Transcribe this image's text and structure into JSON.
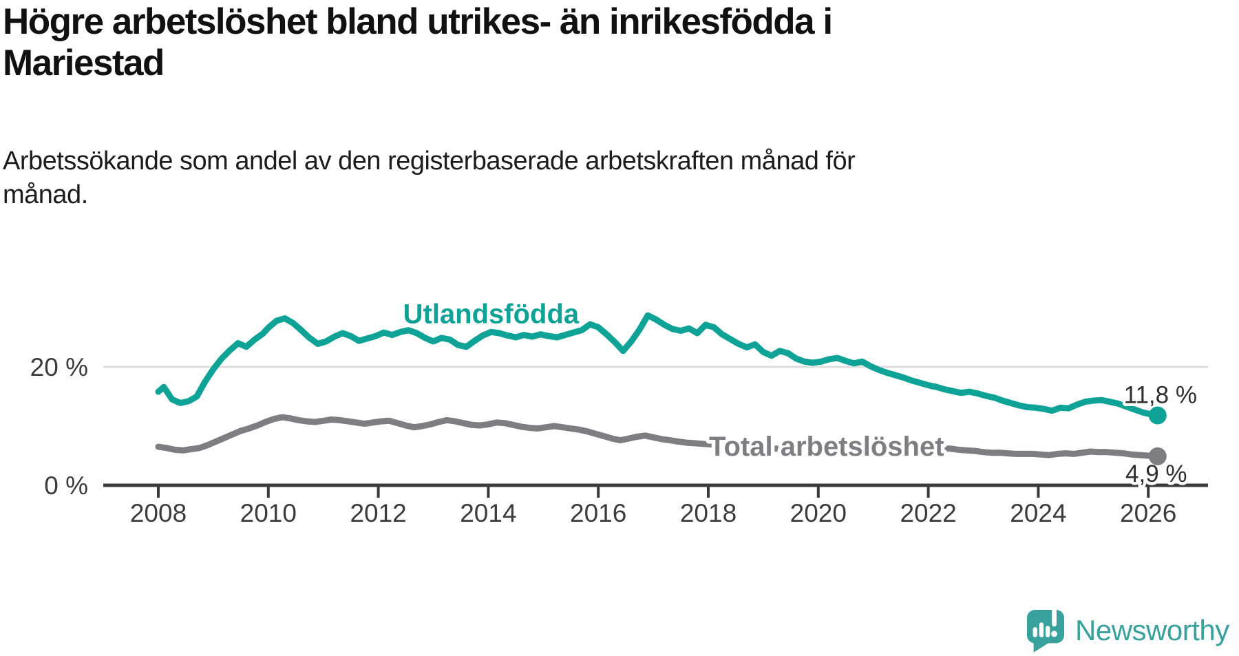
{
  "title": "Högre arbetslöshet bland utrikes- än inrikesfödda i\nMariestad",
  "subtitle": "Arbetssökande som andel av den registerbaserade arbetskraften månad för\nmånad.",
  "branding": {
    "name": "Newsworthy",
    "logo_icon": "speech-bubble-bar-chart-icon"
  },
  "colors": {
    "teal_series": "#0fa296",
    "gray_series": "#7d7d82",
    "axis": "#3b3b3b",
    "gridline": "#dedede",
    "value_label_text": "#2e2e2e",
    "logo_teal": "#38a19b"
  },
  "chart_data": {
    "type": "line",
    "title": "Högre arbetslöshet bland utrikes- än inrikesfödda i Mariestad",
    "subtitle": "Arbetssökande som andel av den registerbaserade arbetskraften månad för månad.",
    "x_axis": {
      "range": [
        2008,
        2026.17
      ],
      "ticks": [
        2008,
        2010,
        2012,
        2014,
        2016,
        2018,
        2020,
        2022,
        2024,
        2026
      ],
      "grid": false
    },
    "y_axis": {
      "range": [
        0,
        33
      ],
      "unit": "%",
      "ticks": [
        {
          "value": 0,
          "label": "0 %"
        },
        {
          "value": 20,
          "label": "20 %"
        }
      ],
      "grid": true
    },
    "legend_position": "inline-labels",
    "series": [
      {
        "name": "Utlandsfödda",
        "color": "#0fa296",
        "end_label": "11,8 %",
        "end_value": 11.8,
        "label_pos": {
          "year": 2014.05,
          "value": 29.0
        },
        "points": [
          [
            2008.0,
            15.8
          ],
          [
            2008.1,
            16.6
          ],
          [
            2008.25,
            14.5
          ],
          [
            2008.4,
            13.9
          ],
          [
            2008.55,
            14.2
          ],
          [
            2008.7,
            15.0
          ],
          [
            2008.85,
            17.5
          ],
          [
            2009.0,
            19.6
          ],
          [
            2009.15,
            21.4
          ],
          [
            2009.3,
            22.8
          ],
          [
            2009.45,
            24.0
          ],
          [
            2009.6,
            23.4
          ],
          [
            2009.75,
            24.6
          ],
          [
            2009.9,
            25.6
          ],
          [
            2010.0,
            26.6
          ],
          [
            2010.15,
            27.8
          ],
          [
            2010.3,
            28.2
          ],
          [
            2010.45,
            27.4
          ],
          [
            2010.6,
            26.2
          ],
          [
            2010.75,
            24.9
          ],
          [
            2010.9,
            23.9
          ],
          [
            2011.05,
            24.3
          ],
          [
            2011.2,
            25.1
          ],
          [
            2011.35,
            25.7
          ],
          [
            2011.5,
            25.2
          ],
          [
            2011.65,
            24.4
          ],
          [
            2011.8,
            24.8
          ],
          [
            2011.95,
            25.2
          ],
          [
            2012.1,
            25.8
          ],
          [
            2012.25,
            25.4
          ],
          [
            2012.4,
            25.9
          ],
          [
            2012.55,
            26.2
          ],
          [
            2012.7,
            25.7
          ],
          [
            2012.85,
            24.9
          ],
          [
            2013.0,
            24.3
          ],
          [
            2013.15,
            24.9
          ],
          [
            2013.3,
            24.6
          ],
          [
            2013.45,
            23.7
          ],
          [
            2013.6,
            23.4
          ],
          [
            2013.75,
            24.4
          ],
          [
            2013.9,
            25.3
          ],
          [
            2014.05,
            25.9
          ],
          [
            2014.2,
            25.7
          ],
          [
            2014.35,
            25.3
          ],
          [
            2014.5,
            25.0
          ],
          [
            2014.65,
            25.4
          ],
          [
            2014.8,
            25.1
          ],
          [
            2014.95,
            25.5
          ],
          [
            2015.1,
            25.2
          ],
          [
            2015.25,
            25.0
          ],
          [
            2015.4,
            25.4
          ],
          [
            2015.55,
            25.8
          ],
          [
            2015.7,
            26.2
          ],
          [
            2015.85,
            27.2
          ],
          [
            2016.0,
            26.7
          ],
          [
            2016.15,
            25.5
          ],
          [
            2016.3,
            24.2
          ],
          [
            2016.45,
            22.7
          ],
          [
            2016.6,
            24.3
          ],
          [
            2016.75,
            26.3
          ],
          [
            2016.9,
            28.7
          ],
          [
            2017.05,
            28.0
          ],
          [
            2017.2,
            27.1
          ],
          [
            2017.35,
            26.4
          ],
          [
            2017.5,
            26.1
          ],
          [
            2017.65,
            26.5
          ],
          [
            2017.8,
            25.7
          ],
          [
            2017.95,
            27.1
          ],
          [
            2018.1,
            26.7
          ],
          [
            2018.25,
            25.5
          ],
          [
            2018.4,
            24.7
          ],
          [
            2018.55,
            23.9
          ],
          [
            2018.7,
            23.3
          ],
          [
            2018.85,
            23.8
          ],
          [
            2019.0,
            22.5
          ],
          [
            2019.15,
            21.9
          ],
          [
            2019.3,
            22.7
          ],
          [
            2019.45,
            22.3
          ],
          [
            2019.6,
            21.4
          ],
          [
            2019.75,
            20.9
          ],
          [
            2019.9,
            20.7
          ],
          [
            2020.05,
            20.9
          ],
          [
            2020.2,
            21.3
          ],
          [
            2020.35,
            21.5
          ],
          [
            2020.5,
            21.0
          ],
          [
            2020.65,
            20.6
          ],
          [
            2020.8,
            20.9
          ],
          [
            2020.95,
            20.1
          ],
          [
            2021.1,
            19.5
          ],
          [
            2021.25,
            19.0
          ],
          [
            2021.4,
            18.6
          ],
          [
            2021.55,
            18.2
          ],
          [
            2021.7,
            17.7
          ],
          [
            2021.85,
            17.3
          ],
          [
            2022.0,
            16.9
          ],
          [
            2022.15,
            16.6
          ],
          [
            2022.3,
            16.2
          ],
          [
            2022.45,
            15.9
          ],
          [
            2022.6,
            15.6
          ],
          [
            2022.75,
            15.8
          ],
          [
            2022.9,
            15.5
          ],
          [
            2023.05,
            15.1
          ],
          [
            2023.2,
            14.8
          ],
          [
            2023.35,
            14.3
          ],
          [
            2023.5,
            13.9
          ],
          [
            2023.65,
            13.5
          ],
          [
            2023.8,
            13.2
          ],
          [
            2023.95,
            13.1
          ],
          [
            2024.1,
            12.9
          ],
          [
            2024.25,
            12.6
          ],
          [
            2024.4,
            13.1
          ],
          [
            2024.55,
            13.0
          ],
          [
            2024.7,
            13.6
          ],
          [
            2024.85,
            14.1
          ],
          [
            2025.0,
            14.3
          ],
          [
            2025.15,
            14.4
          ],
          [
            2025.3,
            14.1
          ],
          [
            2025.45,
            13.8
          ],
          [
            2025.6,
            13.3
          ],
          [
            2025.75,
            12.8
          ],
          [
            2025.9,
            12.3
          ],
          [
            2026.05,
            12.0
          ],
          [
            2026.17,
            11.8
          ]
        ]
      },
      {
        "name": "Total arbetslöshet",
        "color": "#7d7d82",
        "end_label": "4,9 %",
        "end_value": 4.9,
        "label_pos": {
          "year": 2020.15,
          "value": 6.6
        },
        "points": [
          [
            2008.0,
            6.5
          ],
          [
            2008.15,
            6.3
          ],
          [
            2008.3,
            6.0
          ],
          [
            2008.45,
            5.9
          ],
          [
            2008.6,
            6.1
          ],
          [
            2008.75,
            6.3
          ],
          [
            2008.9,
            6.8
          ],
          [
            2009.05,
            7.4
          ],
          [
            2009.2,
            8.0
          ],
          [
            2009.35,
            8.6
          ],
          [
            2009.5,
            9.2
          ],
          [
            2009.65,
            9.6
          ],
          [
            2009.8,
            10.1
          ],
          [
            2009.95,
            10.7
          ],
          [
            2010.1,
            11.2
          ],
          [
            2010.25,
            11.5
          ],
          [
            2010.4,
            11.3
          ],
          [
            2010.55,
            11.0
          ],
          [
            2010.7,
            10.8
          ],
          [
            2010.85,
            10.7
          ],
          [
            2011.0,
            10.9
          ],
          [
            2011.15,
            11.1
          ],
          [
            2011.3,
            11.0
          ],
          [
            2011.45,
            10.8
          ],
          [
            2011.6,
            10.6
          ],
          [
            2011.75,
            10.4
          ],
          [
            2011.9,
            10.6
          ],
          [
            2012.05,
            10.8
          ],
          [
            2012.2,
            10.9
          ],
          [
            2012.35,
            10.5
          ],
          [
            2012.5,
            10.1
          ],
          [
            2012.65,
            9.8
          ],
          [
            2012.8,
            10.0
          ],
          [
            2012.95,
            10.3
          ],
          [
            2013.1,
            10.7
          ],
          [
            2013.25,
            11.0
          ],
          [
            2013.4,
            10.8
          ],
          [
            2013.55,
            10.5
          ],
          [
            2013.7,
            10.2
          ],
          [
            2013.85,
            10.1
          ],
          [
            2014.0,
            10.3
          ],
          [
            2014.15,
            10.6
          ],
          [
            2014.3,
            10.5
          ],
          [
            2014.45,
            10.2
          ],
          [
            2014.6,
            9.9
          ],
          [
            2014.75,
            9.7
          ],
          [
            2014.9,
            9.6
          ],
          [
            2015.05,
            9.8
          ],
          [
            2015.2,
            10.0
          ],
          [
            2015.35,
            9.8
          ],
          [
            2015.5,
            9.6
          ],
          [
            2015.65,
            9.4
          ],
          [
            2015.8,
            9.1
          ],
          [
            2015.95,
            8.7
          ],
          [
            2016.1,
            8.3
          ],
          [
            2016.25,
            7.9
          ],
          [
            2016.4,
            7.6
          ],
          [
            2016.55,
            7.9
          ],
          [
            2016.7,
            8.2
          ],
          [
            2016.85,
            8.4
          ],
          [
            2017.0,
            8.1
          ],
          [
            2017.15,
            7.8
          ],
          [
            2017.3,
            7.6
          ],
          [
            2017.45,
            7.4
          ],
          [
            2017.6,
            7.2
          ],
          [
            2017.75,
            7.1
          ],
          [
            2017.9,
            7.0
          ],
          [
            2018.05,
            6.9
          ],
          [
            2018.2,
            6.8
          ],
          [
            2018.35,
            6.6
          ],
          [
            2018.5,
            6.5
          ],
          [
            2018.65,
            6.4
          ],
          [
            2018.8,
            6.4
          ],
          [
            2018.95,
            6.3
          ],
          [
            2019.1,
            6.2
          ],
          [
            2019.25,
            6.2
          ],
          [
            2019.4,
            6.1
          ],
          [
            2019.55,
            6.1
          ],
          [
            2019.7,
            6.2
          ],
          [
            2019.85,
            6.3
          ],
          [
            2020.0,
            6.4
          ],
          [
            2020.15,
            6.6
          ],
          [
            2020.3,
            6.8
          ],
          [
            2020.45,
            6.9
          ],
          [
            2020.6,
            6.8
          ],
          [
            2020.75,
            6.7
          ],
          [
            2020.9,
            6.6
          ],
          [
            2021.05,
            6.6
          ],
          [
            2021.2,
            6.5
          ],
          [
            2021.35,
            6.4
          ],
          [
            2021.5,
            6.3
          ],
          [
            2021.65,
            6.3
          ],
          [
            2021.8,
            6.2
          ],
          [
            2021.95,
            6.2
          ],
          [
            2022.1,
            6.3
          ],
          [
            2022.25,
            6.2
          ],
          [
            2022.4,
            6.2
          ],
          [
            2022.55,
            6.0
          ],
          [
            2022.7,
            5.9
          ],
          [
            2022.85,
            5.8
          ],
          [
            2023.0,
            5.6
          ],
          [
            2023.15,
            5.5
          ],
          [
            2023.3,
            5.5
          ],
          [
            2023.45,
            5.4
          ],
          [
            2023.6,
            5.3
          ],
          [
            2023.75,
            5.3
          ],
          [
            2023.9,
            5.3
          ],
          [
            2024.05,
            5.2
          ],
          [
            2024.2,
            5.1
          ],
          [
            2024.35,
            5.3
          ],
          [
            2024.5,
            5.4
          ],
          [
            2024.65,
            5.3
          ],
          [
            2024.8,
            5.5
          ],
          [
            2024.95,
            5.7
          ],
          [
            2025.1,
            5.6
          ],
          [
            2025.25,
            5.6
          ],
          [
            2025.4,
            5.5
          ],
          [
            2025.55,
            5.4
          ],
          [
            2025.7,
            5.2
          ],
          [
            2025.85,
            5.1
          ],
          [
            2026.0,
            5.0
          ],
          [
            2026.17,
            4.9
          ]
        ]
      }
    ]
  }
}
